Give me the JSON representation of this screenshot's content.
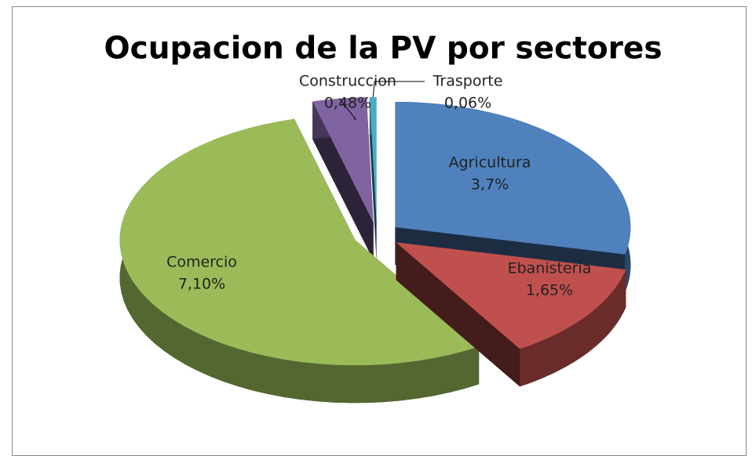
{
  "chart_data": {
    "type": "pie",
    "title": "Ocupacion de la PV por sectores",
    "categories": [
      "Agricultura",
      "Ebanisteria",
      "Comercio",
      "Construccion",
      "Trasporte"
    ],
    "values": [
      3.7,
      1.65,
      7.1,
      0.48,
      0.06
    ],
    "value_labels": [
      "3,7%",
      "1,65%",
      "7,10%",
      "0,48%",
      "0,06%"
    ],
    "colors": [
      "#4f81bd",
      "#c0504d",
      "#9bbb59",
      "#8064a2",
      "#4bacc6"
    ]
  }
}
